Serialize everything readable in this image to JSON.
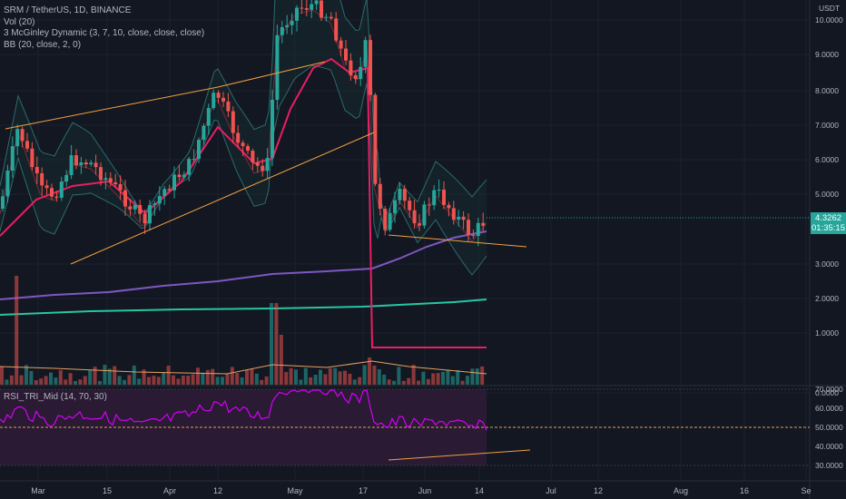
{
  "header": {
    "symbol_line": "SRM / TetherUS, 1D, BINANCE",
    "indicators": [
      "Vol (20)",
      "3 McGinley Dynamic (3, 7, 10, close, close, close)",
      "BB (20, close, 2, 0)"
    ],
    "rsi_title": "RSI_TRI_Mid (14, 70, 30)"
  },
  "price_axis": {
    "currency": "USDT",
    "labels": [
      "10.0000",
      "9.0000",
      "8.0000",
      "7.0000",
      "6.0000",
      "5.0000",
      "3.0000",
      "2.0000",
      "1.0000",
      "0.0000"
    ],
    "current_price": "4.3262",
    "countdown": "01:35:15"
  },
  "rsi_axis": {
    "labels": [
      "70.0000",
      "60.0000",
      "50.0000",
      "40.0000",
      "30.0000"
    ]
  },
  "time_axis": {
    "labels": [
      "Mar",
      "15",
      "Apr",
      "12",
      "May",
      "17",
      "Jun",
      "14",
      "Jul",
      "12",
      "Aug",
      "16",
      "Se"
    ]
  },
  "colors": {
    "bg": "#131722",
    "up": "#26a69a",
    "down": "#ef5350",
    "bb_line": "#2a6b6b",
    "bb_basis": "#7a2a3a",
    "mcg_fast": "#e91e63",
    "mcg_mid": "#7e57c2",
    "mcg_slow": "#26c6a4",
    "trend": "#f0a040",
    "rsi": "#d500f9",
    "grid": "#1e2230",
    "rsi_band": "#2a1a33"
  }
}
